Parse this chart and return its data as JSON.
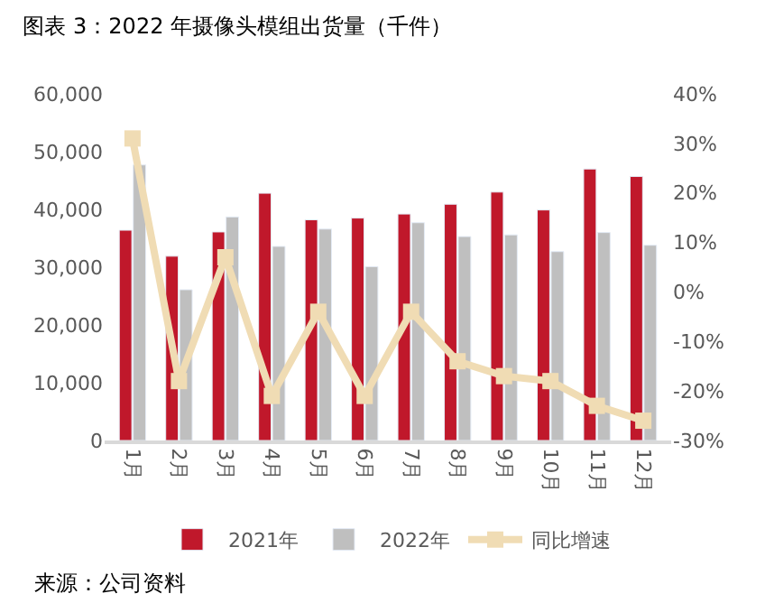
{
  "chart_data": {
    "type": "bar",
    "title": "图表 3：2022 年摄像头模组出货量（千件）",
    "categories": [
      "1月",
      "2月",
      "3月",
      "4月",
      "5月",
      "6月",
      "7月",
      "8月",
      "9月",
      "10月",
      "11月",
      "12月"
    ],
    "series": [
      {
        "name": "2021年",
        "color": "#c0182b",
        "values": [
          36400,
          31900,
          36100,
          42800,
          38200,
          38500,
          39200,
          40900,
          43000,
          39900,
          47000,
          45700
        ]
      },
      {
        "name": "2022年",
        "color": "#bfbfbf",
        "values": [
          47700,
          26100,
          38700,
          33600,
          36600,
          30100,
          37700,
          35300,
          35600,
          32700,
          36000,
          33800
        ]
      },
      {
        "name": "同比增速",
        "type": "line",
        "axis": "y2",
        "color": "#f0dcb4",
        "marker": "square",
        "values": [
          31,
          -18,
          7,
          -21,
          -4,
          -21,
          -4,
          -14,
          -17,
          -18,
          -23,
          -26
        ]
      }
    ],
    "ylim": [
      0,
      60000
    ],
    "yticks": [
      {
        "value": 0,
        "label": "0"
      },
      {
        "value": 10000,
        "label": "10,000"
      },
      {
        "value": 20000,
        "label": "20,000"
      },
      {
        "value": 30000,
        "label": "30,000"
      },
      {
        "value": 40000,
        "label": "40,000"
      },
      {
        "value": 50000,
        "label": "50,000"
      },
      {
        "value": 60000,
        "label": "60,000"
      }
    ],
    "y2lim": [
      -30,
      40
    ],
    "y2ticks": [
      {
        "value": -30,
        "label": "-30%"
      },
      {
        "value": -20,
        "label": "-20%"
      },
      {
        "value": -10,
        "label": "-10%"
      },
      {
        "value": 0,
        "label": "0%"
      },
      {
        "value": 10,
        "label": "10%"
      },
      {
        "value": 20,
        "label": "20%"
      },
      {
        "value": 30,
        "label": "30%"
      },
      {
        "value": 40,
        "label": "40%"
      }
    ],
    "legend": "bottom",
    "annotations": [
      "来源：公司资料"
    ]
  }
}
